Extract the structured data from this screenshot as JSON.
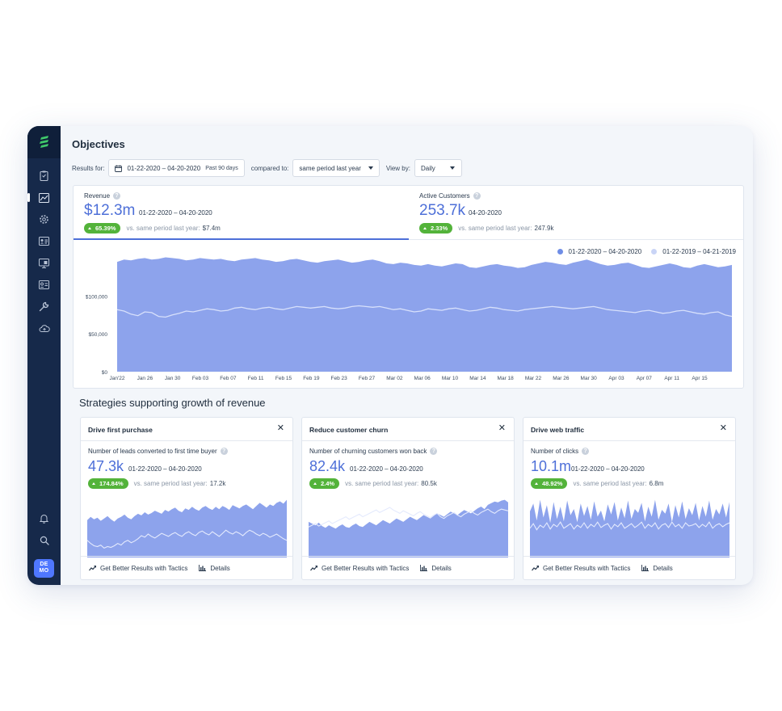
{
  "sidebar": {
    "avatar_text": "DE MO",
    "icons": [
      "logo-icon",
      "clipboard-icon",
      "chart-icon",
      "settings-icon",
      "contacts-icon",
      "monitor-icon",
      "id-card-icon",
      "wrench-icon",
      "cloud-icon",
      "bell-icon",
      "search-icon"
    ]
  },
  "page": {
    "title": "Objectives"
  },
  "filters": {
    "results_for_label": "Results for:",
    "date_range": "01-22-2020 – 04-20-2020",
    "date_hint": "Past 90 days",
    "compared_to_label": "compared to:",
    "compared_to_value": "same period last year",
    "view_by_label": "View by:",
    "view_by_value": "Daily"
  },
  "metrics": {
    "revenue": {
      "label": "Revenue",
      "value": "$12.3m",
      "range": "01-22-2020 – 04-20-2020",
      "badge": "65.39%",
      "compare_label": "vs. same period last year:",
      "compare_value": "$7.4m"
    },
    "customers": {
      "label": "Active Customers",
      "value": "253.7k",
      "range": "04-20-2020",
      "badge": "2.33%",
      "compare_label": "vs. same period last year:",
      "compare_value": "247.9k"
    }
  },
  "colors": {
    "primary": "#4d6fd8",
    "area": "#8da3ec",
    "success": "#53b33a",
    "sidebar": "#16294a"
  },
  "chart_data": [
    {
      "type": "area",
      "series": [
        {
          "name": "01-22-2020 – 04-20-2020",
          "color": "#8da3ec"
        },
        {
          "name": "01-22-2019 – 04-21-2019",
          "color": "#c9d4f6"
        }
      ],
      "x_ticks": [
        "Jan'22",
        "Jan 26",
        "Jan 30",
        "Feb 03",
        "Feb 07",
        "Feb 11",
        "Feb 15",
        "Feb 19",
        "Feb 23",
        "Feb 27",
        "Mar 02",
        "Mar 06",
        "Mar 10",
        "Mar 14",
        "Mar 18",
        "Mar 22",
        "Mar 26",
        "Mar 30",
        "Apr 03",
        "Apr 07",
        "Apr 11",
        "Apr 15"
      ],
      "y_ticks": [
        "$0",
        "$50,000",
        "$100,000"
      ],
      "ylim": [
        0,
        175000
      ],
      "current": [
        145000,
        148000,
        147000,
        149000,
        150000,
        148000,
        149000,
        151000,
        150000,
        149000,
        147000,
        148000,
        150000,
        149000,
        148000,
        149000,
        147000,
        146000,
        148000,
        149000,
        150000,
        148000,
        147000,
        145000,
        146000,
        148000,
        149000,
        147000,
        145000,
        144000,
        146000,
        147000,
        148000,
        146000,
        144000,
        145000,
        147000,
        148000,
        146000,
        143000,
        142000,
        144000,
        143000,
        141000,
        140000,
        142000,
        140000,
        139000,
        141000,
        143000,
        142000,
        138000,
        137000,
        139000,
        141000,
        142000,
        140000,
        139000,
        137000,
        138000,
        141000,
        143000,
        145000,
        144000,
        142000,
        141000,
        144000,
        146000,
        148000,
        145000,
        142000,
        140000,
        141000,
        143000,
        144000,
        141000,
        138000,
        137000,
        139000,
        141000,
        143000,
        141000,
        138000,
        137000,
        140000,
        142000,
        140000,
        138000,
        139000,
        141000
      ],
      "previous": [
        82000,
        80000,
        76000,
        74000,
        79000,
        78000,
        73000,
        72000,
        75000,
        77000,
        80000,
        79000,
        81000,
        83000,
        82000,
        80000,
        81000,
        84000,
        85000,
        83000,
        82000,
        84000,
        85000,
        83000,
        82000,
        84000,
        86000,
        85000,
        84000,
        85000,
        86000,
        84000,
        83000,
        84000,
        86000,
        87000,
        86000,
        85000,
        86000,
        84000,
        82000,
        83000,
        81000,
        79000,
        80000,
        83000,
        82000,
        81000,
        83000,
        84000,
        82000,
        80000,
        81000,
        83000,
        85000,
        84000,
        82000,
        81000,
        80000,
        82000,
        83000,
        84000,
        85000,
        86000,
        85000,
        84000,
        83000,
        84000,
        85000,
        86000,
        84000,
        82000,
        81000,
        80000,
        79000,
        78000,
        80000,
        81000,
        79000,
        77000,
        78000,
        80000,
        81000,
        79000,
        77000,
        76000,
        78000,
        79000,
        75000,
        73000
      ]
    },
    {
      "type": "area",
      "title": "Drive first purchase",
      "current": [
        48,
        52,
        49,
        51,
        47,
        50,
        53,
        49,
        46,
        50,
        52,
        55,
        51,
        49,
        53,
        56,
        54,
        58,
        55,
        57,
        60,
        58,
        56,
        61,
        59,
        62,
        64,
        60,
        58,
        63,
        61,
        65,
        62,
        60,
        64,
        66,
        63,
        61,
        65,
        62,
        66,
        64,
        61,
        67,
        65,
        63,
        66,
        68,
        65,
        62,
        66,
        70,
        67,
        64,
        68,
        66,
        70,
        72,
        69,
        74
      ],
      "previous": [
        22,
        18,
        15,
        14,
        16,
        12,
        14,
        13,
        15,
        18,
        16,
        20,
        22,
        19,
        21,
        24,
        28,
        26,
        30,
        27,
        25,
        28,
        31,
        29,
        27,
        30,
        32,
        29,
        27,
        31,
        33,
        30,
        28,
        32,
        34,
        31,
        29,
        33,
        30,
        27,
        31,
        35,
        32,
        30,
        33,
        31,
        28,
        32,
        35,
        33,
        30,
        28,
        31,
        29,
        26,
        28,
        30,
        27,
        24,
        22
      ]
    },
    {
      "type": "area",
      "title": "Reduce customer churn",
      "current": [
        42,
        40,
        38,
        41,
        37,
        35,
        38,
        36,
        34,
        37,
        39,
        36,
        35,
        38,
        40,
        37,
        36,
        39,
        42,
        40,
        38,
        41,
        44,
        42,
        40,
        43,
        46,
        44,
        42,
        45,
        48,
        46,
        44,
        47,
        50,
        48,
        46,
        49,
        52,
        50,
        48,
        51,
        54,
        52,
        50,
        53,
        56,
        54,
        52,
        55,
        58,
        60,
        57,
        62,
        64,
        66,
        65,
        67,
        68,
        65
      ],
      "previous": [
        36,
        38,
        40,
        37,
        39,
        41,
        43,
        40,
        42,
        44,
        46,
        48,
        45,
        47,
        49,
        51,
        48,
        50,
        52,
        54,
        56,
        53,
        55,
        57,
        59,
        56,
        54,
        52,
        55,
        53,
        51,
        49,
        52,
        54,
        51,
        49,
        47,
        50,
        52,
        48,
        46,
        49,
        51,
        53,
        50,
        48,
        51,
        53,
        55,
        52,
        50,
        53,
        55,
        57,
        54,
        52,
        55,
        57,
        56,
        55
      ]
    },
    {
      "type": "area",
      "title": "Drive web traffic",
      "current": [
        60,
        70,
        48,
        75,
        52,
        68,
        45,
        72,
        50,
        66,
        47,
        74,
        55,
        63,
        46,
        70,
        54,
        67,
        49,
        73,
        53,
        61,
        47,
        69,
        56,
        72,
        48,
        65,
        51,
        74,
        50,
        63,
        58,
        71,
        47,
        66,
        53,
        75,
        49,
        62,
        57,
        70,
        46,
        68,
        52,
        73,
        50,
        64,
        55,
        71,
        48,
        67,
        53,
        74,
        49,
        63,
        56,
        70,
        52,
        72
      ],
      "previous": [
        38,
        44,
        36,
        42,
        39,
        45,
        37,
        43,
        40,
        46,
        38,
        41,
        44,
        37,
        42,
        39,
        45,
        38,
        43,
        40,
        46,
        39,
        42,
        44,
        37,
        43,
        40,
        45,
        38,
        41,
        44,
        39,
        42,
        46,
        38,
        43,
        40,
        45,
        37,
        42,
        44,
        39,
        46,
        40,
        43,
        38,
        45,
        41,
        42,
        44,
        39,
        43,
        40,
        46,
        38,
        42,
        44,
        40,
        43,
        45
      ]
    }
  ],
  "strategies": {
    "title": "Strategies supporting growth of revenue",
    "cards": [
      {
        "title": "Drive first purchase",
        "metric_label": "Number of leads converted to first time buyer",
        "value": "47.3k",
        "range": "01-22-2020 – 04-20-2020",
        "badge": "174.84%",
        "compare_label": "vs. same period last year:",
        "compare_value": "17.2k"
      },
      {
        "title": "Reduce customer churn",
        "metric_label": "Number of churning customers won back",
        "value": "82.4k",
        "range": "01-22-2020 – 04-20-2020",
        "badge": "2.4%",
        "compare_label": "vs. same period last year:",
        "compare_value": "80.5k"
      },
      {
        "title": "Drive web traffic",
        "metric_label": "Number of clicks",
        "value": "10.1m",
        "range": "01-22-2020 – 04-20-2020",
        "badge": "48.92%",
        "compare_label": "vs. same period last year:",
        "compare_value": "6.8m"
      }
    ],
    "tactics_label": "Get Better Results with Tactics",
    "details_label": "Details"
  }
}
